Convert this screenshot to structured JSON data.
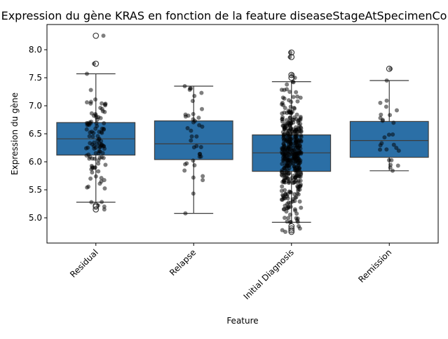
{
  "chart_data": {
    "type": "box",
    "title": "Expression du gène KRAS en fonction de la feature diseaseStageAtSpecimenCo",
    "xlabel": "Feature",
    "ylabel": "Expression du gène",
    "ylim": [
      4.55,
      8.45
    ],
    "yticks": [
      "5.0",
      "5.5",
      "6.0",
      "6.5",
      "7.0",
      "7.5",
      "8.0"
    ],
    "grid": false,
    "box_color": "#2b6fa6",
    "point_color": "#000000",
    "categories": [
      "Residual",
      "Relapse",
      "Initial Diagnosis",
      "Remission"
    ],
    "boxes": [
      {
        "name": "Residual",
        "whisker_low": 5.28,
        "q1": 6.12,
        "median": 6.41,
        "q3": 6.7,
        "whisker_high": 7.57,
        "outliers": [
          5.15,
          5.2,
          5.22,
          7.75,
          8.25
        ],
        "n_points": 110
      },
      {
        "name": "Relapse",
        "whisker_low": 5.08,
        "q1": 6.04,
        "median": 6.32,
        "q3": 6.73,
        "whisker_high": 7.35,
        "outliers": [],
        "n_points": 40
      },
      {
        "name": "Initial Diagnosis",
        "whisker_low": 4.92,
        "q1": 5.83,
        "median": 6.16,
        "q3": 6.48,
        "whisker_high": 7.43,
        "outliers": [
          4.75,
          4.78,
          4.81,
          4.85,
          7.5,
          7.55,
          7.87,
          7.95
        ],
        "n_points": 420
      },
      {
        "name": "Remission",
        "whisker_low": 5.84,
        "q1": 6.08,
        "median": 6.38,
        "q3": 6.72,
        "whisker_high": 7.45,
        "outliers": [
          7.66
        ],
        "n_points": 28
      }
    ]
  }
}
